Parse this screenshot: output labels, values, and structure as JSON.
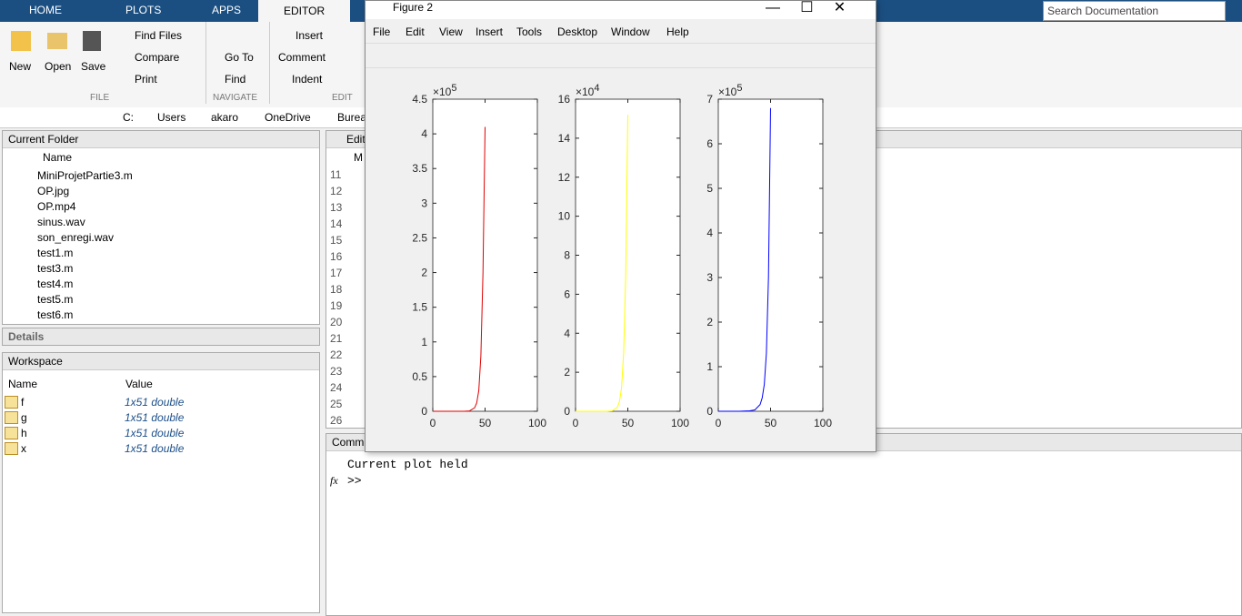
{
  "toolstrip": {
    "tabs": [
      "HOME",
      "PLOTS",
      "APPS",
      "EDITOR"
    ],
    "file": {
      "new": "New",
      "open": "Open",
      "save": "Save",
      "find_files": "Find Files",
      "compare": "Compare",
      "print": "Print",
      "label": "FILE"
    },
    "navigate": {
      "go_to": "Go To",
      "find": "Find",
      "label": "NAVIGATE"
    },
    "edit": {
      "insert": "Insert",
      "comment": "Comment",
      "indent": "Indent",
      "label": "EDIT"
    },
    "search": "Search Documentation"
  },
  "address": [
    "C:",
    "Users",
    "akaro",
    "OneDrive",
    "Bureau"
  ],
  "current_folder": {
    "title": "Current Folder",
    "column": "Name",
    "files": [
      "MiniProjetPartie3.m",
      "OP.jpg",
      "OP.mp4",
      "sinus.wav",
      "son_enregi.wav",
      "test1.m",
      "test3.m",
      "test4.m",
      "test5.m",
      "test6.m"
    ]
  },
  "details": "Details",
  "workspace": {
    "title": "Workspace",
    "columns": [
      "Name",
      "Value"
    ],
    "rows": [
      [
        "f",
        "1x51 double"
      ],
      [
        "g",
        "1x51 double"
      ],
      [
        "h",
        "1x51 double"
      ],
      [
        "x",
        "1x51 double"
      ]
    ]
  },
  "editor": {
    "title": "Edit",
    "tab": "M",
    "line_numbers": [
      11,
      12,
      13,
      14,
      15,
      16,
      17,
      18,
      19,
      20,
      21,
      22,
      23,
      24,
      25,
      26
    ]
  },
  "command_window": {
    "title": "Comm",
    "output": "Current plot held",
    "fx": "fx",
    "prompt": ">>"
  },
  "figure": {
    "title": "Figure 2",
    "menu": [
      "File",
      "Edit",
      "View",
      "Insert",
      "Tools",
      "Desktop",
      "Window",
      "Help"
    ],
    "axes": [
      {
        "type": "line",
        "exponent_base": "×10",
        "exponent": "5",
        "color": "#e00000",
        "x": [
          0,
          10,
          20,
          30,
          35,
          40,
          42,
          44,
          46,
          48,
          50
        ],
        "values": [
          0,
          0,
          0,
          0,
          0.005,
          0.05,
          0.12,
          0.3,
          0.8,
          2.0,
          4.1
        ],
        "xlim": [
          0,
          100
        ],
        "xticks": [
          0,
          50,
          100
        ],
        "ylim": [
          0,
          4.5
        ],
        "yticks": [
          0,
          0.5,
          1,
          1.5,
          2,
          2.5,
          3,
          3.5,
          4,
          4.5
        ]
      },
      {
        "type": "line",
        "exponent_base": "×10",
        "exponent": "4",
        "color": "#ffff00",
        "x": [
          0,
          10,
          20,
          30,
          35,
          40,
          42,
          44,
          46,
          48,
          50
        ],
        "values": [
          0,
          0,
          0,
          0,
          0.02,
          0.2,
          0.5,
          1.2,
          3,
          7,
          15.2
        ],
        "xlim": [
          0,
          100
        ],
        "xticks": [
          0,
          50,
          100
        ],
        "ylim": [
          0,
          16
        ],
        "yticks": [
          0,
          2,
          4,
          6,
          8,
          10,
          12,
          14,
          16
        ]
      },
      {
        "type": "line",
        "exponent_base": "×10",
        "exponent": "5",
        "color": "#0000ff",
        "x": [
          0,
          10,
          20,
          30,
          35,
          40,
          42,
          44,
          46,
          48,
          50
        ],
        "values": [
          0,
          0,
          0,
          0.01,
          0.03,
          0.15,
          0.3,
          0.6,
          1.3,
          3,
          6.8
        ],
        "xlim": [
          0,
          100
        ],
        "xticks": [
          0,
          50,
          100
        ],
        "ylim": [
          0,
          7
        ],
        "yticks": [
          0,
          1,
          2,
          3,
          4,
          5,
          6,
          7
        ]
      }
    ]
  }
}
